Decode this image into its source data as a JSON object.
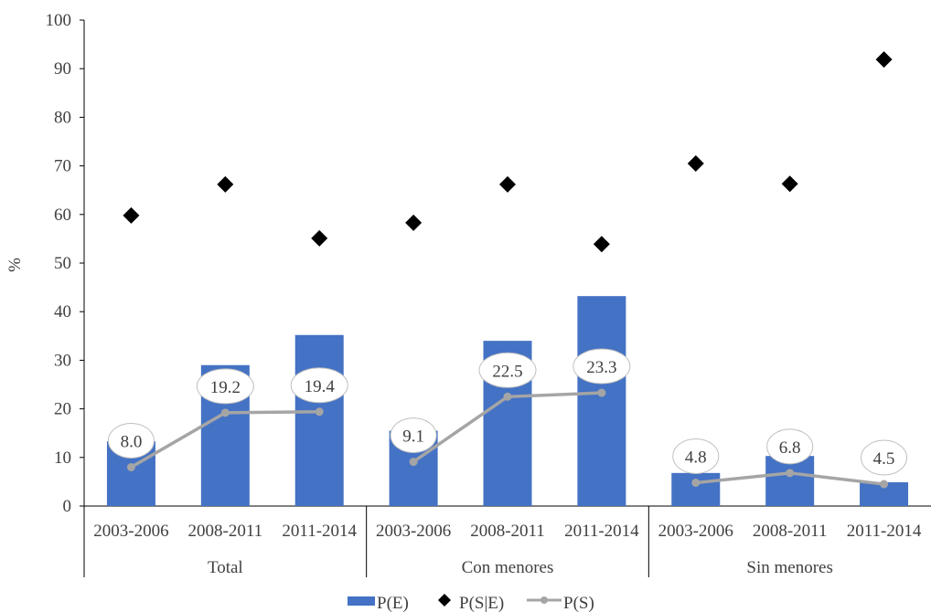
{
  "chart_data": {
    "type": "bar",
    "ylabel": "%",
    "ylim": [
      0,
      100
    ],
    "yticks": [
      0,
      10,
      20,
      30,
      40,
      50,
      60,
      70,
      80,
      90,
      100
    ],
    "groups": [
      "Total",
      "Con menores",
      "Sin menores"
    ],
    "categories": [
      "2003-2006",
      "2008-2011",
      "2011-2014"
    ],
    "series": [
      {
        "name": "P(E)",
        "kind": "bar",
        "color": "#4472C4",
        "values": [
          [
            13.3,
            29.0,
            35.2
          ],
          [
            15.5,
            34.0,
            43.2
          ],
          [
            6.8,
            10.3,
            4.9
          ]
        ]
      },
      {
        "name": "P(S|E)",
        "kind": "scatter",
        "marker": "diamond",
        "color": "#000000",
        "values": [
          [
            59.8,
            66.2,
            55.1
          ],
          [
            58.3,
            66.2,
            53.9
          ],
          [
            70.5,
            66.3,
            91.9
          ]
        ]
      },
      {
        "name": "P(S)",
        "kind": "line",
        "color": "#A5A5A5",
        "values": [
          [
            8.0,
            19.2,
            19.4
          ],
          [
            9.1,
            22.5,
            23.3
          ],
          [
            4.8,
            6.8,
            4.5
          ]
        ],
        "labels": [
          [
            "8.0",
            "19.2",
            "19.4"
          ],
          [
            "9.1",
            "22.5",
            "23.3"
          ],
          [
            "4.8",
            "6.8",
            "4.5"
          ]
        ]
      }
    ],
    "legend": {
      "position": "bottom",
      "items": [
        "P(E)",
        "P(S|E)",
        "P(S)"
      ]
    }
  }
}
